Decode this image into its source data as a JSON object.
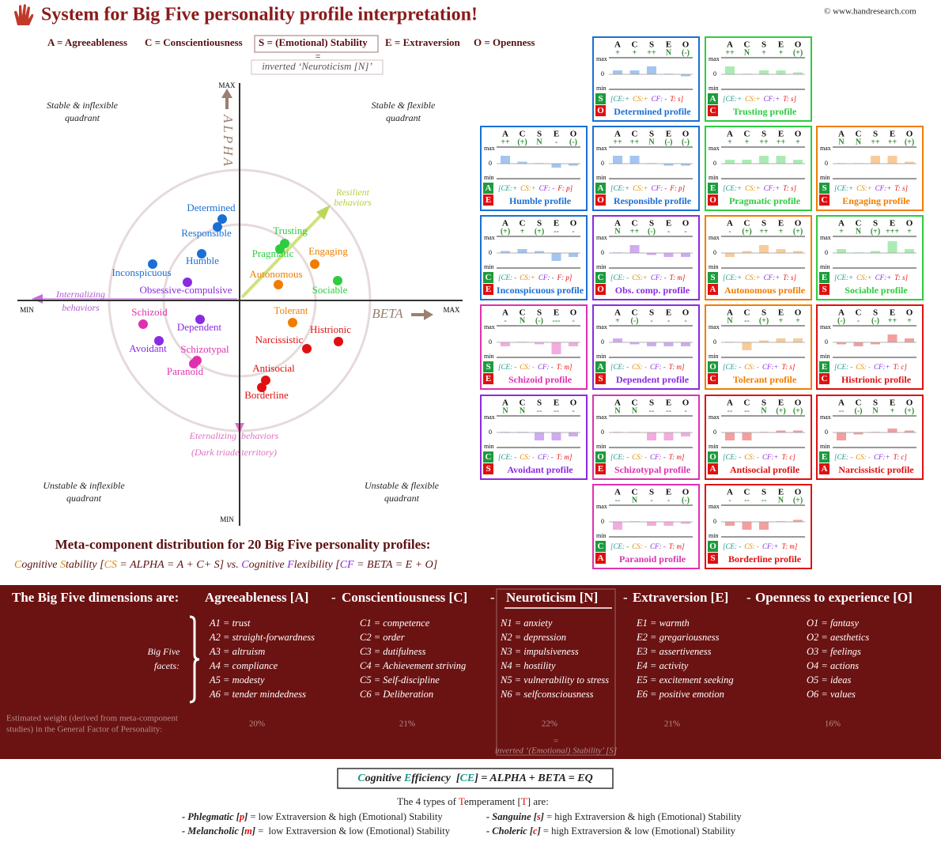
{
  "header": {
    "title": "System for Big Five personality profile interpretation!",
    "copyright": "© www.handresearch.com",
    "legend": [
      "A = Agreeableness",
      "C = Conscientiousness",
      "S = (Emotional) Stability",
      "E = Extraversion",
      "O = Openness"
    ],
    "equals": "=",
    "inverted_note": "inverted ‘Neuroticism [N]’"
  },
  "plot": {
    "y_axis": "ALPHA",
    "x_axis": "BETA",
    "y_max": "MAX",
    "y_min": "MIN",
    "x_min": "MIN",
    "x_max": "MAX",
    "quadrants": [
      [
        "Stable & inflexible",
        "quadrant"
      ],
      [
        "Stable & flexible",
        "quadrant"
      ],
      [
        "Unstable & inflexible",
        "quadrant"
      ],
      [
        "Unstable & flexible",
        "quadrant"
      ]
    ],
    "resilient": [
      "Resilient",
      "behaviors"
    ],
    "internalizing": [
      "Internalizing",
      "behaviors"
    ],
    "externalizing": [
      "Eternalizing  behaviors",
      "(Dark triade territory)"
    ],
    "points": [
      {
        "label": "Determined",
        "color": "#1a6fd6"
      },
      {
        "label": "Responsible",
        "color": "#1a6fd6"
      },
      {
        "label": "Humble",
        "color": "#1a6fd6"
      },
      {
        "label": "Inconspicuous",
        "color": "#1a6fd6"
      },
      {
        "label": "Obsessive-compulsive",
        "color": "#8a2be2"
      },
      {
        "label": "Trusting",
        "color": "#2ecc40"
      },
      {
        "label": "Pragmatic",
        "color": "#2ecc40"
      },
      {
        "label": "Engaging",
        "color": "#f07d00"
      },
      {
        "label": "Autonomous",
        "color": "#f07d00"
      },
      {
        "label": "Sociable",
        "color": "#2ecc40"
      },
      {
        "label": "Schizoid",
        "color": "#e030b0"
      },
      {
        "label": "Dependent",
        "color": "#8a2be2"
      },
      {
        "label": "Avoidant",
        "color": "#8a2be2"
      },
      {
        "label": "Schizotypal",
        "color": "#e030b0"
      },
      {
        "label": "Paranoid",
        "color": "#e030b0"
      },
      {
        "label": "Tolerant",
        "color": "#f07d00"
      },
      {
        "label": "Narcissistic",
        "color": "#e01010"
      },
      {
        "label": "Histrionic",
        "color": "#e01010"
      },
      {
        "label": "Antisocial",
        "color": "#e01010"
      },
      {
        "label": "Borderline",
        "color": "#e01010"
      }
    ]
  },
  "meta": {
    "title": "Meta-component distribution for 20 Big Five personality profiles:",
    "formula": [
      {
        "text": "C",
        "color": "#e08a00"
      },
      {
        "text": "ognitive "
      },
      {
        "text": "S",
        "color": "#e08a00"
      },
      {
        "text": "tability ["
      },
      {
        "text": "CS",
        "color": "#e08a00"
      },
      {
        "text": " = ALPHA = A + C+ S] vs. "
      },
      {
        "text": "C",
        "color": "#8a2be2"
      },
      {
        "text": "ognitive "
      },
      {
        "text": "F",
        "color": "#8a2be2"
      },
      {
        "text": "lexibility ["
      },
      {
        "text": "CF",
        "color": "#8a2be2"
      },
      {
        "text": " = BETA = E + O]"
      }
    ]
  },
  "cards": {
    "columns": [
      "A",
      "C",
      "S",
      "E",
      "O"
    ],
    "max": "max",
    "zero": "0",
    "min": "min",
    "profiles": [
      {
        "name": "Determined profile",
        "color": "#1a6fd6",
        "signs": [
          "+",
          "+",
          "++",
          "N",
          "(-)"
        ],
        "badges": [
          "S",
          "O"
        ],
        "formula": [
          "[CE:+",
          "CS:+",
          "CF: -",
          "T: s]"
        ]
      },
      {
        "name": "Trusting profile",
        "color": "#2ecc40",
        "signs": [
          "++",
          "N",
          "+",
          "+",
          "(+)"
        ],
        "badges": [
          "A",
          "C"
        ],
        "formula": [
          "[CE:+",
          "CS:+",
          "CF:+",
          "T: s]"
        ]
      },
      {
        "name": "Humble profile",
        "color": "#1a6fd6",
        "signs": [
          "++",
          "(+)",
          "N",
          "-",
          "(-)"
        ],
        "badges": [
          "A",
          "E"
        ],
        "formula": [
          "[CE:+",
          "CS:+",
          "CF: -",
          "F: p]"
        ]
      },
      {
        "name": "Responsible profile",
        "color": "#1a6fd6",
        "signs": [
          "++",
          "++",
          "N",
          "(-)",
          "(-)"
        ],
        "badges": [
          "A",
          "O"
        ],
        "formula": [
          "[CE:+",
          "CS:+",
          "CF: -",
          "F: p]"
        ]
      },
      {
        "name": "Pragmatic profile",
        "color": "#2ecc40",
        "signs": [
          "+",
          "+",
          "++",
          "++",
          "+"
        ],
        "badges": [
          "E",
          "O"
        ],
        "formula": [
          "[CE:+",
          "CS:+",
          "CF:+",
          "T: s]"
        ]
      },
      {
        "name": "Engaging profile",
        "color": "#f07d00",
        "signs": [
          "N",
          "N",
          "++",
          "++",
          "(+)"
        ],
        "badges": [
          "S",
          "C"
        ],
        "formula": [
          "[CE:+",
          "CS:+",
          "CF:+",
          "T: s]"
        ]
      },
      {
        "name": "Inconspicuous profile",
        "color": "#1a6fd6",
        "signs": [
          "(+)",
          "+",
          "(+)",
          "--",
          "-"
        ],
        "badges": [
          "C",
          "E"
        ],
        "formula": [
          "[CE: -",
          "CS:+",
          "CF: -",
          "F: p]"
        ]
      },
      {
        "name": "Obs. comp. profile",
        "color": "#8a2be2",
        "signs": [
          "N",
          "++",
          "(-)",
          "-",
          "-"
        ],
        "badges": [
          "C",
          "O"
        ],
        "formula": [
          "[CE: -",
          "CS:+",
          "CF: -",
          "T: m]"
        ]
      },
      {
        "name": "Autonomous profile",
        "color": "#f07d00",
        "signs": [
          "-",
          "(+)",
          "++",
          "+",
          "(+)"
        ],
        "badges": [
          "S",
          "A"
        ],
        "formula": [
          "[CE:+",
          "CS:+",
          "CF:+",
          "T: s]"
        ]
      },
      {
        "name": "Sociable profile",
        "color": "#2ecc40",
        "signs": [
          "+",
          "N",
          "(+)",
          "+++",
          "+"
        ],
        "badges": [
          "E",
          "S"
        ],
        "formula": [
          "[CE:+",
          "CS:+",
          "CF:+",
          "T: s]"
        ]
      },
      {
        "name": "Schizoid profile",
        "color": "#e030b0",
        "signs": [
          "-",
          "N",
          "(-)",
          "---",
          "-"
        ],
        "badges": [
          "S",
          "E"
        ],
        "formula": [
          "[CE: -",
          "CS: -",
          "CF: -",
          "T: m]"
        ]
      },
      {
        "name": "Dependent profile",
        "color": "#8a2be2",
        "signs": [
          "+",
          "(-)",
          "-",
          "-",
          "-"
        ],
        "badges": [
          "A",
          "S"
        ],
        "formula": [
          "[CE: -",
          "CS: -",
          "CF: -",
          "T: m]"
        ]
      },
      {
        "name": "Tolerant profile",
        "color": "#f07d00",
        "signs": [
          "N",
          "--",
          "(+)",
          "+",
          "+"
        ],
        "badges": [
          "O",
          "C"
        ],
        "formula": [
          "[CE: -",
          "CS: -",
          "CF:+",
          "T: s]"
        ]
      },
      {
        "name": "Histrionic profile",
        "color": "#e01010",
        "signs": [
          "(-)",
          "-",
          "(-)",
          "++",
          "+"
        ],
        "badges": [
          "E",
          "C"
        ],
        "formula": [
          "[CE: -",
          "CS: -",
          "CF:+",
          "T: c]"
        ]
      },
      {
        "name": "Avoidant profile",
        "color": "#8a2be2",
        "signs": [
          "N",
          "N",
          "--",
          "--",
          "-"
        ],
        "badges": [
          "C",
          "S"
        ],
        "formula": [
          "[CE: -",
          "CS: -",
          "CF: -",
          "T: m]"
        ]
      },
      {
        "name": "Schizotypal profile",
        "color": "#e030b0",
        "signs": [
          "N",
          "N",
          "--",
          "--",
          "-"
        ],
        "badges": [
          "O",
          "E"
        ],
        "formula": [
          "[CE: -",
          "CS: -",
          "CF: -",
          "T: m]"
        ]
      },
      {
        "name": "Antisocial profile",
        "color": "#e01010",
        "signs": [
          "--",
          "--",
          "N",
          "(+)",
          "(+)"
        ],
        "badges": [
          "O",
          "A"
        ],
        "formula": [
          "[CE: -",
          "CS: -",
          "CF:+",
          "T: c]"
        ]
      },
      {
        "name": "Narcissistic profile",
        "color": "#e01010",
        "signs": [
          "--",
          "(-)",
          "N",
          "+",
          "(+)"
        ],
        "badges": [
          "E",
          "A"
        ],
        "formula": [
          "[CE: -",
          "CS: -",
          "CF:+",
          "T: c]"
        ]
      },
      {
        "name": "Paranoid profile",
        "color": "#e030b0",
        "signs": [
          "--",
          "N",
          "-",
          "-",
          "(-)"
        ],
        "badges": [
          "C",
          "A"
        ],
        "formula": [
          "[CE: -",
          "CS: -",
          "CF: -",
          "T: m]"
        ]
      },
      {
        "name": "Borderline profile",
        "color": "#e01010",
        "signs": [
          "-",
          "--",
          "--",
          "N",
          "(+)"
        ],
        "badges": [
          "O",
          "S"
        ],
        "formula": [
          "[CE: -",
          "CS: -",
          "CF:+",
          "T: m]"
        ]
      }
    ]
  },
  "dimensions": {
    "intro": "The Big Five dimensions are:",
    "separator": "-",
    "names": [
      "Agreeableness [A]",
      "Conscientiousness [C]",
      "Neuroticism [N]",
      "Extraversion [E]",
      "Openness to experience [O]"
    ],
    "facets_label": [
      "Big Five",
      "facets:"
    ],
    "facets": [
      [
        "A1 = trust",
        "A2 = straight-forwardness",
        "A3 = altruism",
        "A4 = compliance",
        "A5 = modesty",
        "A6 = tender mindedness"
      ],
      [
        "C1 = competence",
        "C2 = order",
        "C3 = dutifulness",
        "C4 = Achievement striving",
        "C5 = Self-discipline",
        "C6 = Deliberation"
      ],
      [
        "N1 = anxiety",
        "N2 = depression",
        "N3 = impulsiveness",
        "N4 = hostility",
        "N5 = vulnerability to stress",
        "N6 = selfconsciousness"
      ],
      [
        "E1 = warmth",
        "E2 = gregariousness",
        "E3 = assertiveness",
        "E4 = activity",
        "E5 = excitement seeking",
        "E6 = positive emotion"
      ],
      [
        "O1 = fantasy",
        "O2 = aesthetics",
        "O3 = feelings",
        "O4 = actions",
        "O5 = ideas",
        "O6 = values"
      ]
    ],
    "weight_label": [
      "Estimated weight (derived from meta-component",
      "studies) in the General Factor of Personality:"
    ],
    "weights": [
      "20%",
      "21%",
      "22%",
      "21%",
      "16%"
    ],
    "equals": "=",
    "inverted_note": "inverted ‘(Emotional) Stability’ [S]"
  },
  "footer": {
    "efficiency": [
      {
        "text": "C",
        "color": "#1a9a8a"
      },
      {
        "text": "ognitive "
      },
      {
        "text": "E",
        "color": "#1a9a8a"
      },
      {
        "text": "fficiency  ["
      },
      {
        "text": "CE",
        "color": "#1a9a8a"
      },
      {
        "text": "] = ALPHA + BETA = EQ"
      }
    ],
    "temperament_title": [
      {
        "text": "The 4 types of "
      },
      {
        "text": "T",
        "color": "#e01010"
      },
      {
        "text": "emperament ["
      },
      {
        "text": "T",
        "color": "#e01010"
      },
      {
        "text": "] are:"
      }
    ],
    "temperaments": [
      [
        {
          "text": "- Phlegmatic [",
          "bold": true
        },
        {
          "text": "p",
          "color": "#e01010",
          "bold": true
        },
        {
          "text": "]",
          "bold": true
        },
        {
          "text": " = low Extraversion & high (Emotional) Stability"
        }
      ],
      [
        {
          "text": "- Sanguine [",
          "bold": true
        },
        {
          "text": "s",
          "color": "#e01010",
          "bold": true
        },
        {
          "text": "]",
          "bold": true
        },
        {
          "text": " = high Extraversion & high (Emotional) Stability"
        }
      ],
      [
        {
          "text": "- Melancholic [",
          "bold": true
        },
        {
          "text": "m",
          "color": "#e01010",
          "bold": true
        },
        {
          "text": "]",
          "bold": true
        },
        {
          "text": " =  low Extraversion & low (Emotional) Stability"
        }
      ],
      [
        {
          "text": "- Choleric [",
          "bold": true
        },
        {
          "text": "c",
          "color": "#e01010",
          "bold": true
        },
        {
          "text": "]",
          "bold": true
        },
        {
          "text": " = high Extraversion & low (Emotional) Stability"
        }
      ]
    ]
  }
}
